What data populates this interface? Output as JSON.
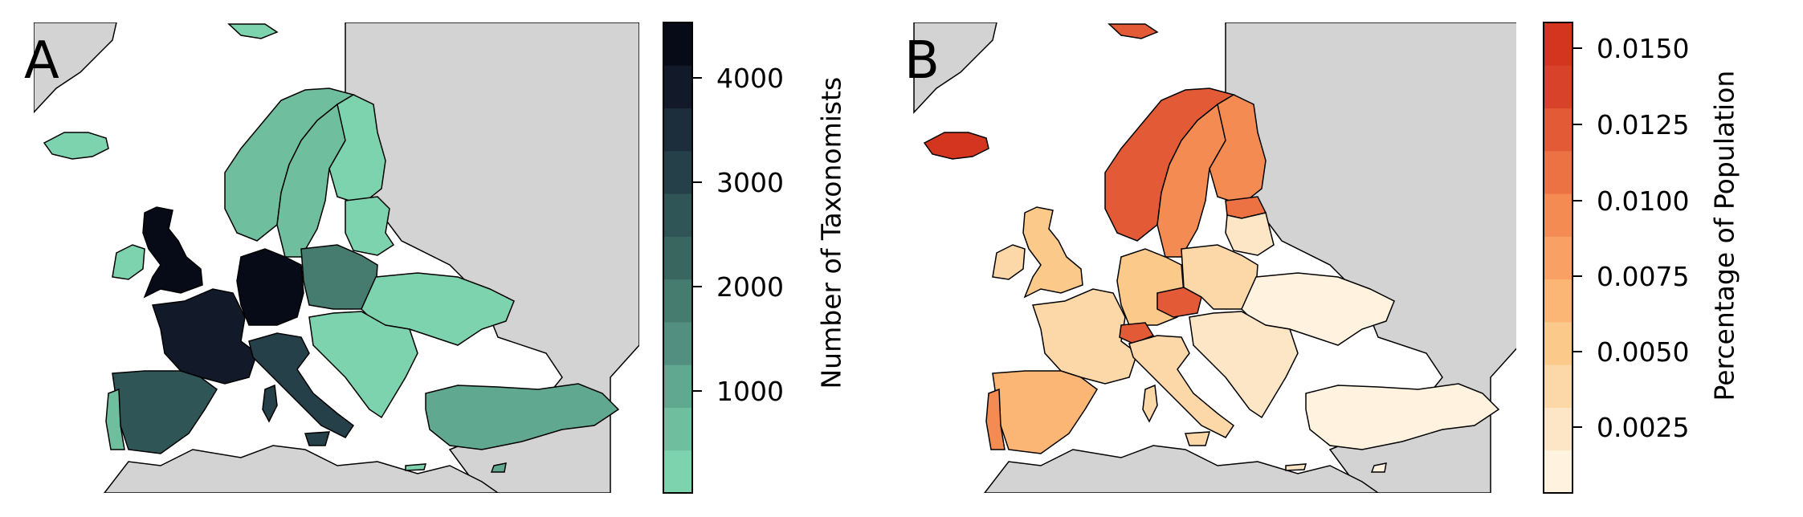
{
  "colors": {
    "background": "#d3d3d3",
    "border": "#000000",
    "panel_a_colormap": [
      "#7dd3ae",
      "#6fbf9f",
      "#60a890",
      "#528f80",
      "#467b70",
      "#3a6660",
      "#2f5556",
      "#26404a",
      "#1c2d3c",
      "#121a2a",
      "#070b18"
    ],
    "panel_b_colormap": [
      "#fff2df",
      "#fde6c6",
      "#fcd8a8",
      "#fbc98a",
      "#fbb676",
      "#f9a064",
      "#f48b53",
      "#ec7244",
      "#e35b36",
      "#d8422a",
      "#d3351f"
    ]
  },
  "panels": [
    {
      "id": "A",
      "letter": "A",
      "colorbar_label": "Number of Taxonomists",
      "colorbar_ticks": [
        "1000",
        "2000",
        "3000",
        "4000"
      ],
      "legend_range": [
        0,
        4500
      ],
      "regions": [
        {
          "name": "iceland",
          "value": 300
        },
        {
          "name": "norway",
          "value": 500
        },
        {
          "name": "sweden",
          "value": 600
        },
        {
          "name": "finland",
          "value": 100
        },
        {
          "name": "united-kingdom",
          "value": 4500
        },
        {
          "name": "ireland",
          "value": 200
        },
        {
          "name": "france",
          "value": 3900
        },
        {
          "name": "spain",
          "value": 2800
        },
        {
          "name": "portugal",
          "value": 700
        },
        {
          "name": "germany",
          "value": 4500
        },
        {
          "name": "italy",
          "value": 3200
        },
        {
          "name": "poland",
          "value": 1700
        },
        {
          "name": "ukraine",
          "value": 100
        },
        {
          "name": "turkey",
          "value": 1000
        },
        {
          "name": "baltics",
          "value": 200
        },
        {
          "name": "balkans",
          "value": 300
        }
      ]
    },
    {
      "id": "B",
      "letter": "B",
      "colorbar_label": "Percentage of Population",
      "colorbar_ticks": [
        "0.0025",
        "0.0050",
        "0.0075",
        "0.0100",
        "0.0125",
        "0.0150"
      ],
      "legend_range": [
        0,
        0.016
      ],
      "regions": [
        {
          "name": "iceland",
          "value": 0.016
        },
        {
          "name": "norway",
          "value": 0.012
        },
        {
          "name": "sweden",
          "value": 0.009
        },
        {
          "name": "finland",
          "value": 0.009
        },
        {
          "name": "united-kingdom",
          "value": 0.005
        },
        {
          "name": "ireland",
          "value": 0.004
        },
        {
          "name": "france",
          "value": 0.004
        },
        {
          "name": "spain",
          "value": 0.006
        },
        {
          "name": "portugal",
          "value": 0.009
        },
        {
          "name": "germany",
          "value": 0.005
        },
        {
          "name": "italy",
          "value": 0.004
        },
        {
          "name": "czechia",
          "value": 0.013
        },
        {
          "name": "switzerland",
          "value": 0.012
        },
        {
          "name": "poland",
          "value": 0.004
        },
        {
          "name": "ukraine",
          "value": 0.001
        },
        {
          "name": "turkey",
          "value": 0.001
        },
        {
          "name": "estonia",
          "value": 0.011
        },
        {
          "name": "balkans",
          "value": 0.002
        }
      ]
    }
  ]
}
